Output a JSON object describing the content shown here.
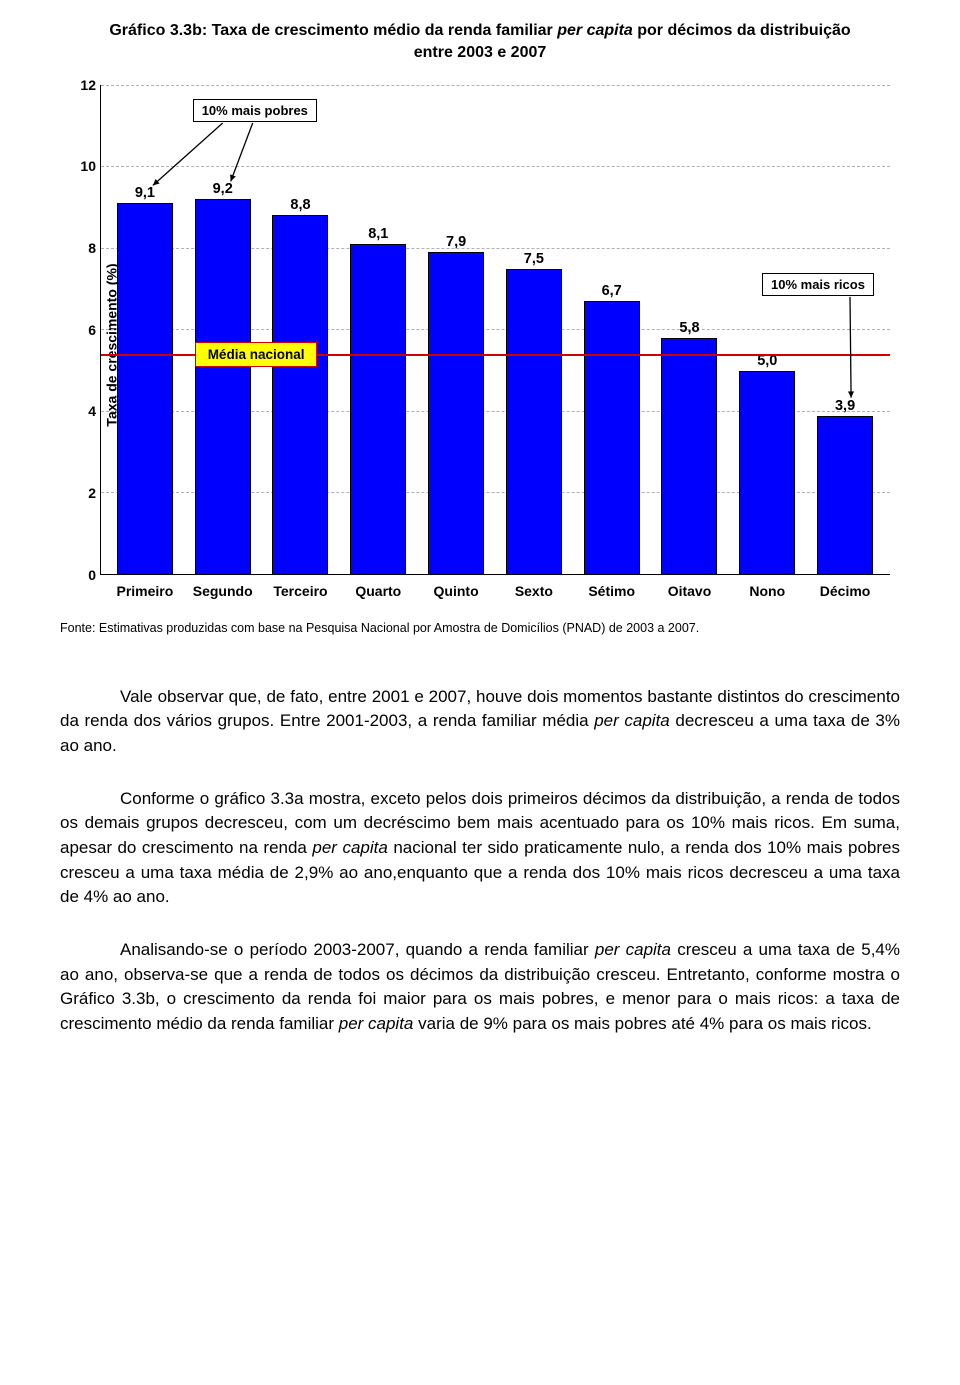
{
  "chart": {
    "type": "bar",
    "title_prefix": "Gráfico 3.3b: Taxa de crescimento médio da renda familiar ",
    "title_ital": "per capita",
    "title_suffix": " por décimos da distribuição entre 2003 e 2007",
    "y_label": "Taxa de crescimento (%)",
    "ylim": [
      0,
      12
    ],
    "ytick_step": 2,
    "y_ticks": [
      0,
      2,
      4,
      6,
      8,
      10,
      12
    ],
    "categories": [
      "Primeiro",
      "Segundo",
      "Terceiro",
      "Quarto",
      "Quinto",
      "Sexto",
      "Sétimo",
      "Oitavo",
      "Nono",
      "Décimo"
    ],
    "values": [
      9.1,
      9.2,
      8.8,
      8.1,
      7.9,
      7.5,
      6.7,
      5.8,
      5.0,
      3.9
    ],
    "value_labels": [
      "9,1",
      "9,2",
      "8,8",
      "8,1",
      "7,9",
      "7,5",
      "6,7",
      "5,8",
      "5,0",
      "3,9"
    ],
    "bar_color": "#0000ff",
    "bar_border": "#000000",
    "grid_color": "#b0b0b0",
    "bar_width_pct": 72,
    "callout_pobres": "10% mais pobres",
    "callout_ricos": "10% mais ricos",
    "callout_media": "Média nacional",
    "avg_value": 5.4,
    "avg_line_color": "#cc0000",
    "media_bg": "#ffff00",
    "media_border": "#cc0000",
    "background_color": "#ffffff",
    "title_fontsize": 16,
    "label_fontsize": 14
  },
  "fonte": "Fonte: Estimativas produzidas com base na Pesquisa Nacional por Amostra de Domicílios (PNAD) de 2003 a 2007.",
  "para1_a": "Vale observar que, de fato, entre 2001 e 2007, houve dois momentos bastante distintos do crescimento da renda dos vários grupos. Entre 2001-2003, a renda familiar média ",
  "para1_i1": "per capita",
  "para1_b": " decresceu a uma taxa de 3% ao ano.",
  "para2_a": "Conforme o gráfico 3.3a mostra, exceto pelos dois primeiros décimos da distribuição, a renda de todos os demais grupos decresceu, com um decréscimo bem mais acentuado para os 10% mais ricos. Em suma, apesar do crescimento na renda ",
  "para2_i1": "per capita",
  "para2_b": " nacional ter sido praticamente nulo, a renda dos 10% mais pobres cresceu a uma taxa média de 2,9% ao ano,enquanto que a renda dos 10% mais ricos decresceu a uma taxa de 4% ao ano.",
  "para3_a": "Analisando-se o período 2003-2007, quando a renda familiar ",
  "para3_i1": "per capita",
  "para3_b": " cresceu a uma taxa de 5,4% ao ano, observa-se que a renda de todos os décimos da distribuição cresceu. Entretanto, conforme mostra o Gráfico 3.3b, o crescimento da renda foi maior para os mais pobres, e menor para o mais ricos: a taxa de crescimento médio da renda familiar ",
  "para3_i2": "per capita",
  "para3_c": " varia de 9% para os mais pobres até 4% para os mais ricos."
}
